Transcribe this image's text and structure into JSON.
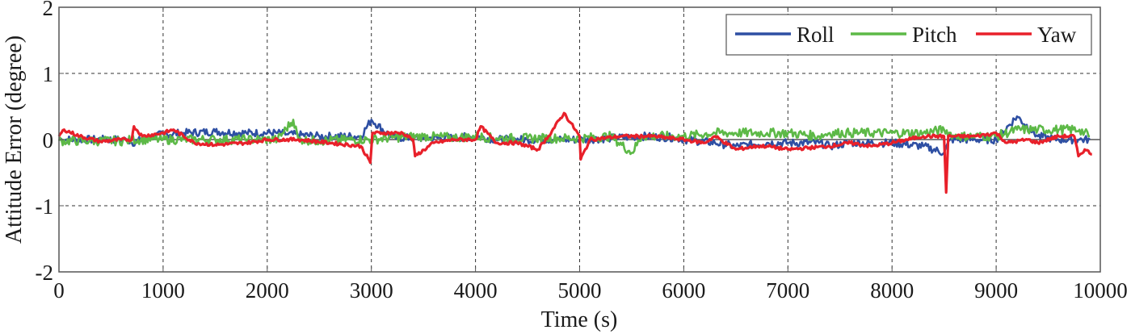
{
  "chart_data": {
    "type": "line",
    "title": "",
    "xlabel": "Time (s)",
    "ylabel": "Attitude Error (degree)",
    "xlim": [
      0,
      10000
    ],
    "ylim": [
      -2,
      2
    ],
    "xticks": [
      0,
      1000,
      2000,
      3000,
      4000,
      5000,
      6000,
      7000,
      8000,
      9000,
      10000
    ],
    "xtick_labels": [
      "0",
      "1000",
      "2000",
      "3000",
      "4000",
      "5000",
      "6000",
      "7000",
      "8000",
      "9000",
      "10000"
    ],
    "yticks": [
      -2,
      -1,
      0,
      1,
      2
    ],
    "ytick_labels": [
      "-2",
      "-1",
      "0",
      "1",
      "2"
    ],
    "grid": true,
    "grid_style": "dashed",
    "legend_position": "upper right",
    "legend_orientation": "horizontal",
    "series": [
      {
        "name": "Roll",
        "color": "#2e4fa3",
        "x": [
          0,
          300,
          650,
          700,
          900,
          1000,
          1200,
          1500,
          1800,
          2100,
          2200,
          2500,
          2900,
          3000,
          3200,
          3500,
          3800,
          4000,
          4200,
          4500,
          4800,
          5000,
          5300,
          5600,
          5900,
          6000,
          6300,
          6500,
          6800,
          7000,
          7300,
          7400,
          7600,
          8000,
          8300,
          8500,
          8560,
          8800,
          9000,
          9200,
          9400,
          9600,
          9800,
          9900
        ],
        "values": [
          0.0,
          0.0,
          0.0,
          -0.05,
          0.05,
          0.08,
          0.1,
          0.12,
          0.1,
          0.1,
          0.08,
          0.05,
          0.05,
          0.3,
          0.03,
          0.02,
          0.03,
          0.05,
          0.0,
          0.0,
          0.0,
          0.0,
          0.02,
          0.05,
          0.03,
          0.0,
          -0.05,
          -0.1,
          -0.05,
          -0.05,
          -0.05,
          -0.1,
          -0.05,
          -0.05,
          -0.1,
          -0.2,
          0.0,
          0.0,
          0.0,
          0.35,
          0.05,
          0.0,
          0.0,
          0.0
        ]
      },
      {
        "name": "Pitch",
        "color": "#5db947",
        "x": [
          0,
          300,
          650,
          700,
          900,
          1000,
          1200,
          1500,
          1800,
          2100,
          2250,
          2300,
          2500,
          2800,
          3000,
          3200,
          3500,
          3800,
          4000,
          4200,
          4500,
          4800,
          5000,
          5300,
          5500,
          5600,
          5900,
          6000,
          6300,
          6500,
          6800,
          7000,
          7300,
          7400,
          7600,
          8000,
          8300,
          8500,
          8600,
          8800,
          9000,
          9200,
          9400,
          9600,
          9800,
          9900
        ],
        "values": [
          -0.02,
          -0.02,
          -0.02,
          0.0,
          0.0,
          0.0,
          0.0,
          0.0,
          0.0,
          0.0,
          0.3,
          0.0,
          -0.02,
          0.0,
          0.0,
          0.03,
          0.05,
          0.03,
          0.05,
          0.02,
          0.02,
          0.02,
          0.02,
          0.05,
          -0.2,
          0.05,
          0.05,
          0.05,
          0.1,
          0.1,
          0.1,
          0.1,
          0.05,
          0.1,
          0.1,
          0.1,
          0.1,
          0.15,
          0.05,
          0.05,
          0.05,
          0.15,
          0.15,
          0.15,
          0.15,
          0.05
        ]
      },
      {
        "name": "Yaw",
        "color": "#e8202a",
        "x": [
          0,
          50,
          200,
          400,
          600,
          700,
          720,
          800,
          1000,
          1100,
          1300,
          1500,
          1800,
          2000,
          2300,
          2600,
          2900,
          2990,
          3010,
          3100,
          3300,
          3400,
          3420,
          3600,
          3800,
          4000,
          4050,
          4200,
          4400,
          4600,
          4700,
          4850,
          5000,
          5010,
          5100,
          5400,
          5700,
          6000,
          6200,
          6300,
          6500,
          6700,
          6800,
          7000,
          7400,
          7600,
          7800,
          8000,
          8300,
          8500,
          8520,
          8540,
          8600,
          8800,
          9000,
          9100,
          9300,
          9400,
          9600,
          9750,
          9790,
          9850,
          9920
        ],
        "values": [
          0.05,
          0.15,
          0.05,
          -0.03,
          0.0,
          0.0,
          0.2,
          0.05,
          0.1,
          0.15,
          -0.05,
          -0.08,
          -0.05,
          0.0,
          0.0,
          -0.05,
          -0.1,
          -0.35,
          0.1,
          0.1,
          0.1,
          0.0,
          -0.25,
          -0.05,
          0.0,
          0.0,
          0.2,
          -0.05,
          -0.05,
          -0.15,
          0.05,
          0.4,
          0.05,
          -0.3,
          0.0,
          0.05,
          0.05,
          0.0,
          -0.05,
          0.05,
          -0.15,
          -0.1,
          -0.1,
          -0.15,
          -0.1,
          -0.05,
          -0.1,
          -0.05,
          0.05,
          0.05,
          -0.8,
          0.05,
          0.05,
          0.05,
          0.1,
          -0.05,
          0.0,
          -0.05,
          0.05,
          0.05,
          -0.25,
          -0.15,
          -0.22
        ]
      }
    ]
  },
  "legend": {
    "items": [
      {
        "label": "Roll",
        "color": "#2e4fa3"
      },
      {
        "label": "Pitch",
        "color": "#5db947"
      },
      {
        "label": "Yaw",
        "color": "#e8202a"
      }
    ]
  },
  "axes": {
    "xlabel": "Time (s)",
    "ylabel": "Attitude Error (degree)"
  }
}
